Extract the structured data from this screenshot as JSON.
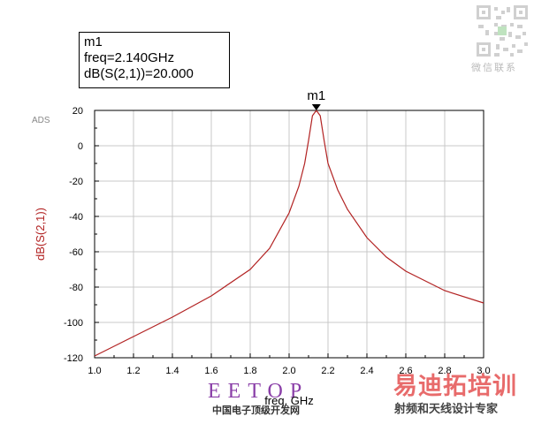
{
  "marker": {
    "name": "m1",
    "freq_line": "freq=2.140GHz",
    "value_line": "dB(S(2,1))=20.000",
    "freq": 2.14,
    "value": 20.0
  },
  "software_tag": "ADS",
  "watermark": {
    "brand": "EETOP",
    "brand_sub": "中国电子顶级开发网",
    "cn_title": "易迪拓培训",
    "cn_sub": "射频和天线设计专家",
    "qr_caption": "微信联系"
  },
  "colors": {
    "trace": "#b22222",
    "ylabel": "#b22222",
    "marker_text": "#000000",
    "watermark_red": "#e86b6b"
  },
  "chart_data": {
    "type": "line",
    "xlabel": "freq, GHz",
    "ylabel": "dB(S(2,1))",
    "xlim": [
      1.0,
      3.0
    ],
    "ylim": [
      -120,
      20
    ],
    "grid": true,
    "x_ticks": [
      "1.0",
      "1.2",
      "1.4",
      "1.6",
      "1.8",
      "2.0",
      "2.2",
      "2.4",
      "2.6",
      "2.8",
      "3.0"
    ],
    "y_ticks": [
      "20",
      "0",
      "-20",
      "-40",
      "-60",
      "-80",
      "-100",
      "-120"
    ],
    "series": [
      {
        "x": [
          1.0,
          1.2,
          1.4,
          1.6,
          1.8,
          1.9,
          2.0,
          2.05,
          2.08,
          2.1,
          2.12,
          2.14,
          2.16,
          2.18,
          2.2,
          2.25,
          2.3,
          2.4,
          2.5,
          2.6,
          2.8,
          3.0
        ],
        "y": [
          -119,
          -108,
          -97,
          -85,
          -70,
          -58,
          -38,
          -23,
          -10,
          3,
          17,
          20,
          17,
          3,
          -10,
          -25,
          -36,
          -52,
          -63,
          -71,
          -82,
          -89
        ]
      }
    ]
  }
}
